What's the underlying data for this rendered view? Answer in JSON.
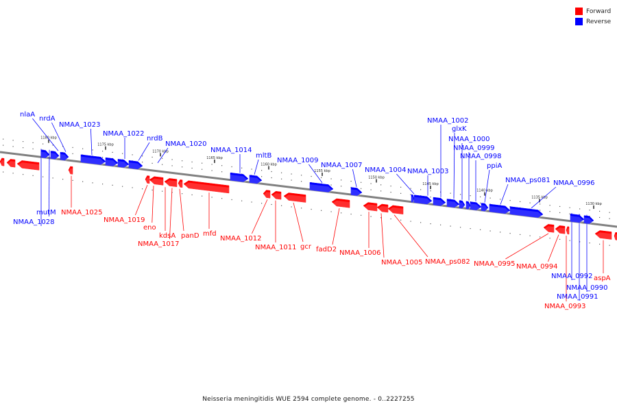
{
  "caption": "Neisseria meningitidis WUE 2594 complete genome. - 0..2227255",
  "legend": {
    "forward": {
      "label": "Forward",
      "color": "#ff0000"
    },
    "reverse": {
      "label": "Reverse",
      "color": "#0000ff"
    }
  },
  "colors": {
    "forward": "#ff0000",
    "reverse": "#0000ff",
    "backbone": "#808080"
  },
  "ticks": [
    "1180 kbp",
    "1175 kbp",
    "1170 kbp",
    "1165 kbp",
    "1160 kbp",
    "1155 kbp",
    "1150 kbp",
    "1145 kbp",
    "1140 kbp",
    "1135 kbp",
    "1130 kbp"
  ],
  "reverse_genes": [
    "nlaA",
    "nrdA",
    "NMAA_1023",
    "NMAA_1022",
    "nrdB",
    "NMAA_1020",
    "NMAA_1014",
    "mltB",
    "NMAA_1009",
    "NMAA_1007",
    "NMAA_1004",
    "NMAA_1003",
    "NMAA_1002",
    "glxK",
    "NMAA_1000",
    "NMAA_0999",
    "NMAA_0998",
    "ppiA",
    "NMAA_ps081",
    "NMAA_0996",
    "mutM",
    "NMAA_1028",
    "NMAA_0992",
    "NMAA_0990",
    "NMAA_0991"
  ],
  "forward_genes": [
    "NMAA_1025",
    "NMAA_1019",
    "eno",
    "kdsA",
    "panD",
    "mfd",
    "NMAA_1017",
    "NMAA_1012",
    "NMAA_1011",
    "gcr",
    "fadD2",
    "NMAA_1006",
    "NMAA_1005",
    "NMAA_ps082",
    "NMAA_0995",
    "NMAA_0994",
    "aspA",
    "NMAA_0993"
  ]
}
